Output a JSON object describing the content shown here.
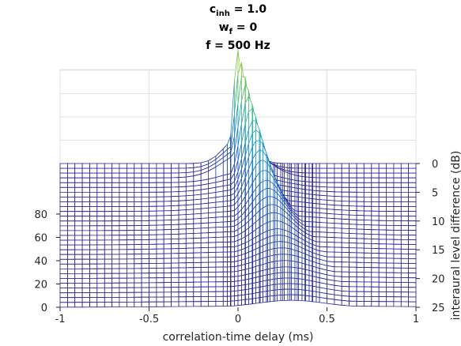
{
  "title": {
    "line1": {
      "base": "c",
      "sub": "inh",
      "rest": " = 1.0"
    },
    "line2": {
      "base": "w",
      "sub": "f",
      "rest": " = 0"
    },
    "line3": "f = 500 Hz"
  },
  "chart_data": {
    "type": "surface",
    "title": "c_inh = 1.0, w_f = 0, f = 500 Hz",
    "xlabel": "correlation-time delay (ms)",
    "ylabel": "interaural level difference (dB)",
    "xlim": [
      -1,
      1
    ],
    "ylim": [
      0,
      25
    ],
    "zlim": [
      0,
      100
    ],
    "x_ticks": [
      "-1",
      "-0.5",
      "0",
      "0.5",
      "1"
    ],
    "y_ticks": [
      "0",
      "5",
      "10",
      "15",
      "20",
      "25"
    ],
    "z_ticks": [
      "0",
      "20",
      "40",
      "60",
      "80"
    ],
    "grid": true,
    "colormap": "parula",
    "colors": {
      "low": "#2a1e8c",
      "mid": "#1aa8c8",
      "high": "#f0e62a",
      "grid": "#e3e3e3",
      "axis": "#262626"
    },
    "peak_summary": [
      {
        "ild_db": 0,
        "peak_delay_ms": 0.0,
        "peak_value": 98
      },
      {
        "ild_db": 5,
        "peak_delay_ms": 0.09,
        "peak_value": 62
      },
      {
        "ild_db": 10,
        "peak_delay_ms": 0.16,
        "peak_value": 35
      },
      {
        "ild_db": 15,
        "peak_delay_ms": 0.22,
        "peak_value": 18
      },
      {
        "ild_db": 20,
        "peak_delay_ms": 0.27,
        "peak_value": 10
      },
      {
        "ild_db": 25,
        "peak_delay_ms": 0.3,
        "peak_value": 6
      }
    ]
  }
}
